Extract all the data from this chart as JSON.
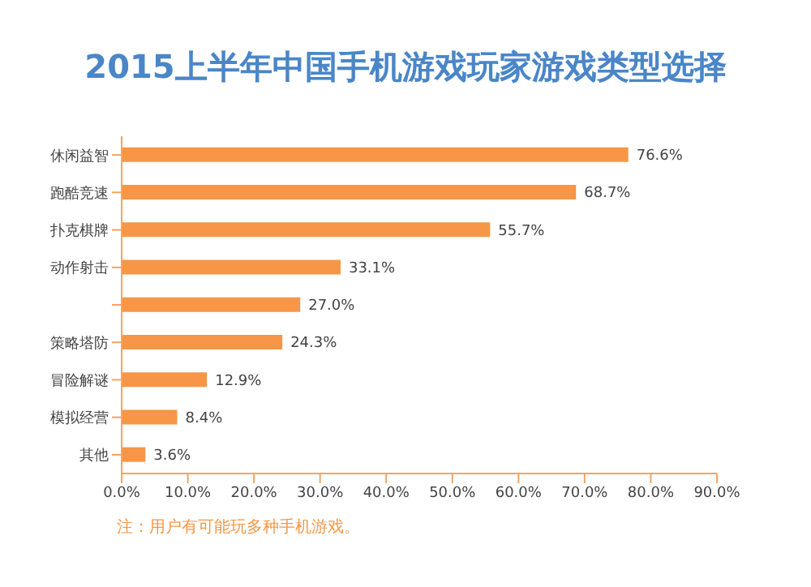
{
  "chart_data": {
    "type": "bar",
    "orientation": "horizontal",
    "title": "2015上半年中国手机游戏玩家游戏类型选择",
    "categories": [
      "休闲益智",
      "跑酷竞速",
      "扑克棋牌",
      "动作射击",
      null,
      "策略塔防",
      "冒险解谜",
      "模拟经营",
      "其他"
    ],
    "values": [
      76.6,
      68.7,
      55.7,
      33.1,
      27.0,
      24.3,
      12.9,
      8.4,
      3.6
    ],
    "value_labels": [
      "76.6%",
      "68.7%",
      "55.7%",
      "33.1%",
      "27.0%",
      "24.3%",
      "12.9%",
      "8.4%",
      "3.6%"
    ],
    "color": "#f79646",
    "xlim": [
      0,
      90
    ],
    "xticks": [
      {
        "value": 0,
        "label": "0.0%"
      },
      {
        "value": 10,
        "label": "10.0%"
      },
      {
        "value": 20,
        "label": "20.0%"
      },
      {
        "value": 30,
        "label": "30.0%"
      },
      {
        "value": 40,
        "label": "40.0%"
      },
      {
        "value": 50,
        "label": "50.0%"
      },
      {
        "value": 60,
        "label": "60.0%"
      },
      {
        "value": 70,
        "label": "70.0%"
      },
      {
        "value": 80,
        "label": "80.0%"
      },
      {
        "value": 90,
        "label": "90.0%"
      }
    ],
    "annotations": [
      "注：用户有可能玩多种手机游戏。"
    ],
    "grid": false
  }
}
